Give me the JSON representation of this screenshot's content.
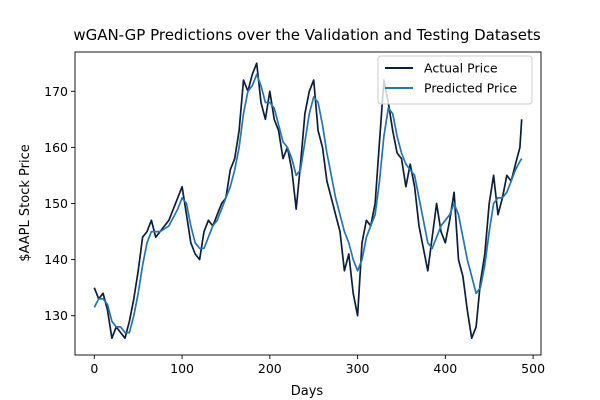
{
  "chart_data": {
    "type": "line",
    "title": "wGAN-GP Predictions over the Validation and Testing Datasets",
    "xlabel": "Days",
    "ylabel": "$AAPL Stock Price",
    "xlim": [
      -22,
      509
    ],
    "ylim": [
      123,
      177
    ],
    "xticks": [
      0,
      100,
      200,
      300,
      400,
      500
    ],
    "yticks": [
      130,
      140,
      150,
      160,
      170
    ],
    "grid": false,
    "legend_position": "top-right",
    "colors": {
      "actual": "#0b1f3a",
      "predicted": "#2b73ad"
    },
    "series": [
      {
        "name": "Actual Price",
        "x": [
          0,
          5,
          10,
          15,
          20,
          25,
          30,
          35,
          40,
          45,
          50,
          55,
          60,
          65,
          70,
          75,
          80,
          85,
          90,
          95,
          100,
          105,
          110,
          115,
          120,
          125,
          130,
          135,
          140,
          145,
          150,
          155,
          160,
          165,
          170,
          175,
          180,
          185,
          190,
          195,
          200,
          205,
          210,
          215,
          220,
          225,
          230,
          235,
          240,
          245,
          250,
          255,
          260,
          265,
          270,
          275,
          280,
          285,
          290,
          295,
          300,
          305,
          310,
          315,
          320,
          325,
          330,
          335,
          340,
          345,
          350,
          355,
          360,
          365,
          370,
          375,
          380,
          385,
          390,
          395,
          400,
          405,
          410,
          415,
          420,
          425,
          430,
          435,
          440,
          445,
          450,
          455,
          460,
          465,
          470,
          475,
          480,
          485,
          487
        ],
        "values": [
          135,
          133,
          134,
          131,
          126,
          128,
          127,
          126,
          129,
          133,
          138,
          144,
          145,
          147,
          144,
          145,
          146,
          147,
          149,
          151,
          153,
          148,
          143,
          141,
          140,
          145,
          147,
          146,
          148,
          150,
          151,
          156,
          158,
          163,
          172,
          170,
          173,
          175,
          168,
          165,
          170,
          165,
          163,
          158,
          160,
          156,
          149,
          157,
          166,
          170,
          172,
          163,
          160,
          154,
          151,
          148,
          145,
          138,
          141,
          134,
          130,
          143,
          147,
          146,
          150,
          161,
          172,
          168,
          163,
          159,
          158,
          153,
          157,
          153,
          146,
          142,
          138,
          144,
          150,
          145,
          143,
          147,
          152,
          140,
          137,
          131,
          126,
          128,
          136,
          141,
          150,
          155,
          148,
          151,
          155,
          154,
          157,
          160,
          165
        ]
      },
      {
        "name": "Predicted Price",
        "x": [
          0,
          5,
          10,
          15,
          20,
          25,
          30,
          35,
          40,
          45,
          50,
          55,
          60,
          65,
          70,
          75,
          80,
          85,
          90,
          95,
          100,
          105,
          110,
          115,
          120,
          125,
          130,
          135,
          140,
          145,
          150,
          155,
          160,
          165,
          170,
          175,
          180,
          185,
          190,
          195,
          200,
          205,
          210,
          215,
          220,
          225,
          230,
          235,
          240,
          245,
          250,
          255,
          260,
          265,
          270,
          275,
          280,
          285,
          290,
          295,
          300,
          305,
          310,
          315,
          320,
          325,
          330,
          335,
          340,
          345,
          350,
          355,
          360,
          365,
          370,
          375,
          380,
          385,
          390,
          395,
          400,
          405,
          410,
          415,
          420,
          425,
          430,
          435,
          440,
          445,
          450,
          455,
          460,
          465,
          470,
          475,
          480,
          485,
          487
        ],
        "values": [
          131.5,
          133,
          133,
          132,
          129,
          128,
          128,
          127,
          127,
          130,
          134,
          139,
          143,
          145,
          145,
          145,
          145.5,
          146,
          147.5,
          149,
          151,
          150,
          146,
          143,
          142,
          142,
          144,
          146,
          147,
          149,
          151,
          153,
          156,
          160,
          166,
          170,
          171,
          173,
          171,
          168,
          168,
          167,
          164,
          161,
          160,
          158,
          155,
          156,
          161,
          166,
          169,
          168,
          164,
          159,
          155,
          151,
          148,
          145,
          143,
          140,
          138,
          140,
          144,
          146,
          148,
          154,
          162,
          167,
          166,
          162,
          159,
          157,
          156,
          155,
          151,
          147,
          143,
          142,
          144,
          146,
          147,
          148,
          150,
          148,
          144,
          140,
          137,
          134,
          135,
          139,
          145,
          150,
          151,
          151,
          152,
          154,
          156,
          157.5,
          158
        ]
      }
    ]
  }
}
